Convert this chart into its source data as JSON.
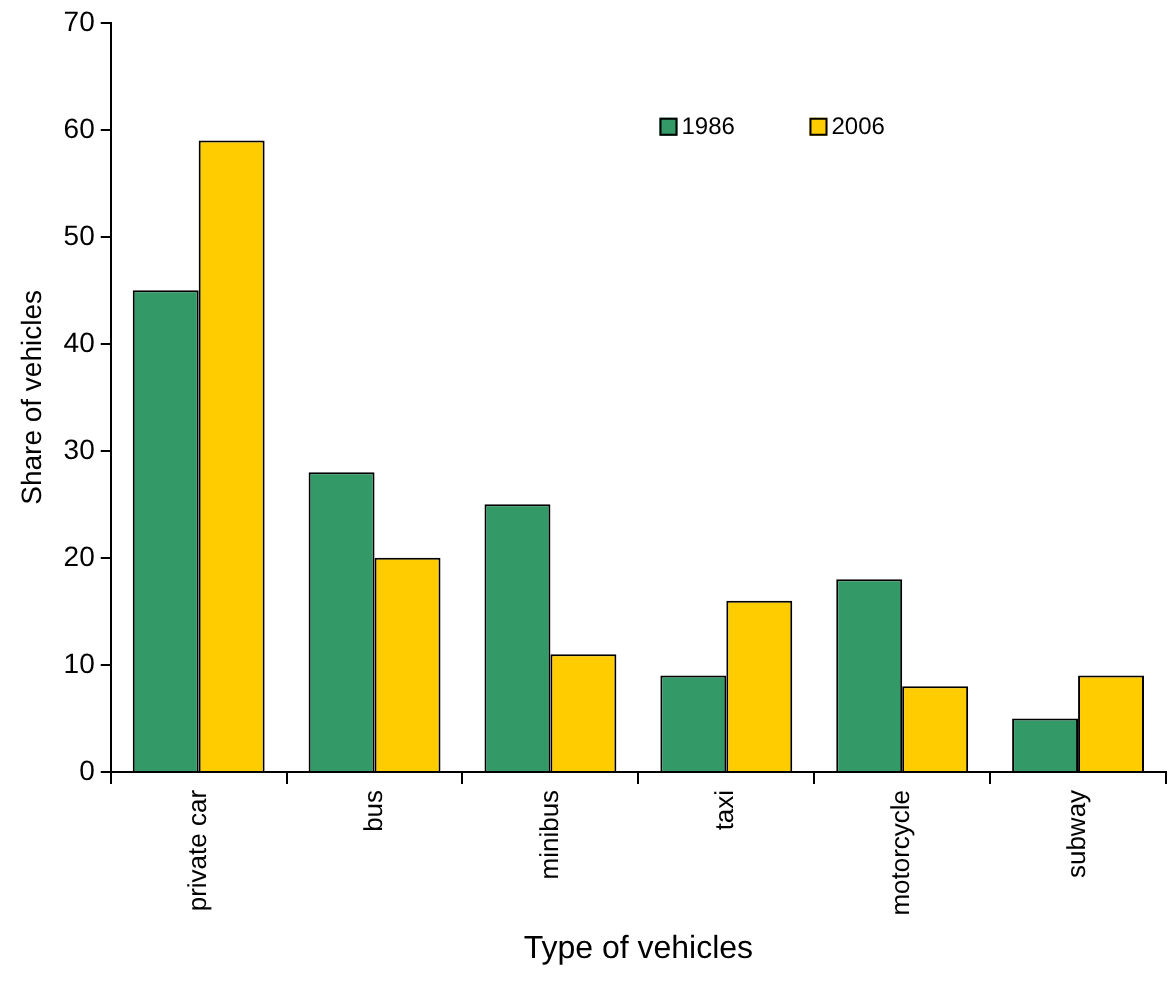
{
  "chart_data": {
    "type": "bar",
    "xlabel": "Type of vehicles",
    "ylabel": "Share of vehicles",
    "categories": [
      "private car",
      "bus",
      "minibus",
      "taxi",
      "motorcycle",
      "subway"
    ],
    "series": [
      {
        "name": "1986",
        "color": "#339966",
        "values": [
          45,
          28,
          25,
          9,
          18,
          5
        ]
      },
      {
        "name": "2006",
        "color": "#ffcc00",
        "values": [
          59,
          20,
          11,
          16,
          8,
          9
        ]
      }
    ],
    "ylim": [
      0,
      70
    ],
    "yticks": [
      0,
      10,
      20,
      30,
      40,
      50,
      60,
      70
    ],
    "grid": false,
    "legend": "top"
  }
}
